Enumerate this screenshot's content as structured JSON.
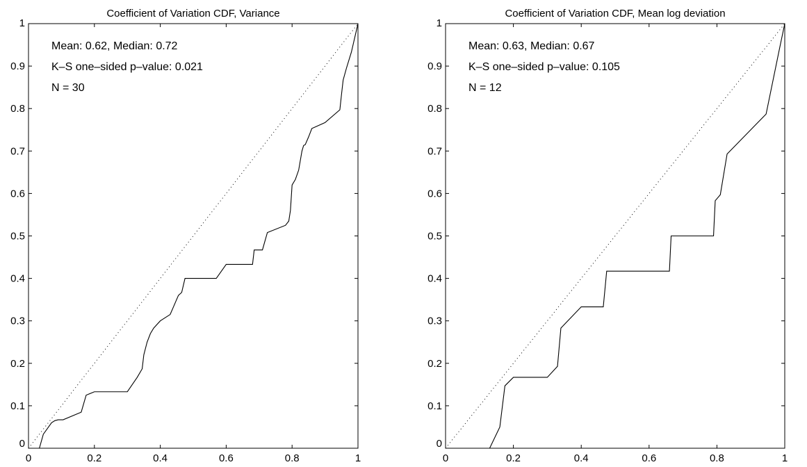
{
  "chart_data": [
    {
      "type": "line",
      "title": "Coefficient of Variation CDF, Variance",
      "xlabel": "",
      "ylabel": "",
      "xlim": [
        0,
        1
      ],
      "ylim": [
        0,
        1
      ],
      "x_ticks": [
        "0",
        "0.2",
        "0.4",
        "0.6",
        "0.8",
        "1"
      ],
      "y_ticks": [
        "0",
        "0.1",
        "0.2",
        "0.3",
        "0.4",
        "0.5",
        "0.6",
        "0.7",
        "0.8",
        "0.9",
        "1"
      ],
      "grid": false,
      "annotations": [
        "Mean:  0.62,  Median:  0.72",
        "K–S one–sided p–value:  0.021",
        "N = 30"
      ],
      "series": [
        {
          "style": "solid",
          "x": [
            0.0,
            0.033,
            0.045,
            0.07,
            0.08,
            0.09,
            0.105,
            0.16,
            0.175,
            0.2,
            0.22,
            0.3,
            0.33,
            0.345,
            0.35,
            0.36,
            0.37,
            0.38,
            0.4,
            0.43,
            0.44,
            0.455,
            0.465,
            0.475,
            0.57,
            0.6,
            0.68,
            0.685,
            0.71,
            0.725,
            0.78,
            0.79,
            0.795,
            0.8,
            0.81,
            0.82,
            0.83,
            0.835,
            0.84,
            0.85,
            0.86,
            0.9,
            0.945,
            0.95,
            0.955,
            0.965,
            0.98,
            1.0
          ],
          "y": [
            0.0,
            0.0,
            0.033,
            0.06,
            0.065,
            0.067,
            0.067,
            0.085,
            0.125,
            0.133,
            0.133,
            0.133,
            0.167,
            0.187,
            0.22,
            0.25,
            0.27,
            0.283,
            0.3,
            0.315,
            0.333,
            0.36,
            0.367,
            0.4,
            0.4,
            0.433,
            0.433,
            0.467,
            0.467,
            0.508,
            0.525,
            0.535,
            0.56,
            0.62,
            0.633,
            0.655,
            0.7,
            0.713,
            0.715,
            0.733,
            0.753,
            0.767,
            0.797,
            0.833,
            0.867,
            0.895,
            0.933,
            1.0
          ]
        },
        {
          "style": "dotted",
          "x": [
            0,
            1
          ],
          "y": [
            0,
            1
          ]
        }
      ]
    },
    {
      "type": "line",
      "title": "Coefficient of Variation CDF, Mean log deviation",
      "xlabel": "",
      "ylabel": "",
      "xlim": [
        0,
        1
      ],
      "ylim": [
        0,
        1
      ],
      "x_ticks": [
        "0",
        "0.2",
        "0.4",
        "0.6",
        "0.8",
        "1"
      ],
      "y_ticks": [
        "0",
        "0.1",
        "0.2",
        "0.3",
        "0.4",
        "0.5",
        "0.6",
        "0.7",
        "0.8",
        "0.9",
        "1"
      ],
      "grid": false,
      "annotations": [
        "Mean:  0.63,  Median:  0.67",
        "K–S one–sided p–value:  0.105",
        "N = 12"
      ],
      "series": [
        {
          "style": "solid",
          "x": [
            0.0,
            0.1,
            0.16,
            0.175,
            0.2,
            0.3,
            0.33,
            0.34,
            0.4,
            0.465,
            0.475,
            0.66,
            0.665,
            0.79,
            0.795,
            0.81,
            0.83,
            0.945,
            0.985,
            1.0
          ],
          "y": [
            -0.05,
            -0.05,
            0.05,
            0.147,
            0.167,
            0.167,
            0.193,
            0.283,
            0.333,
            0.333,
            0.417,
            0.417,
            0.5,
            0.5,
            0.583,
            0.597,
            0.693,
            0.787,
            0.943,
            1.0
          ]
        },
        {
          "style": "dotted",
          "x": [
            0,
            1
          ],
          "y": [
            0,
            1
          ]
        }
      ]
    }
  ]
}
